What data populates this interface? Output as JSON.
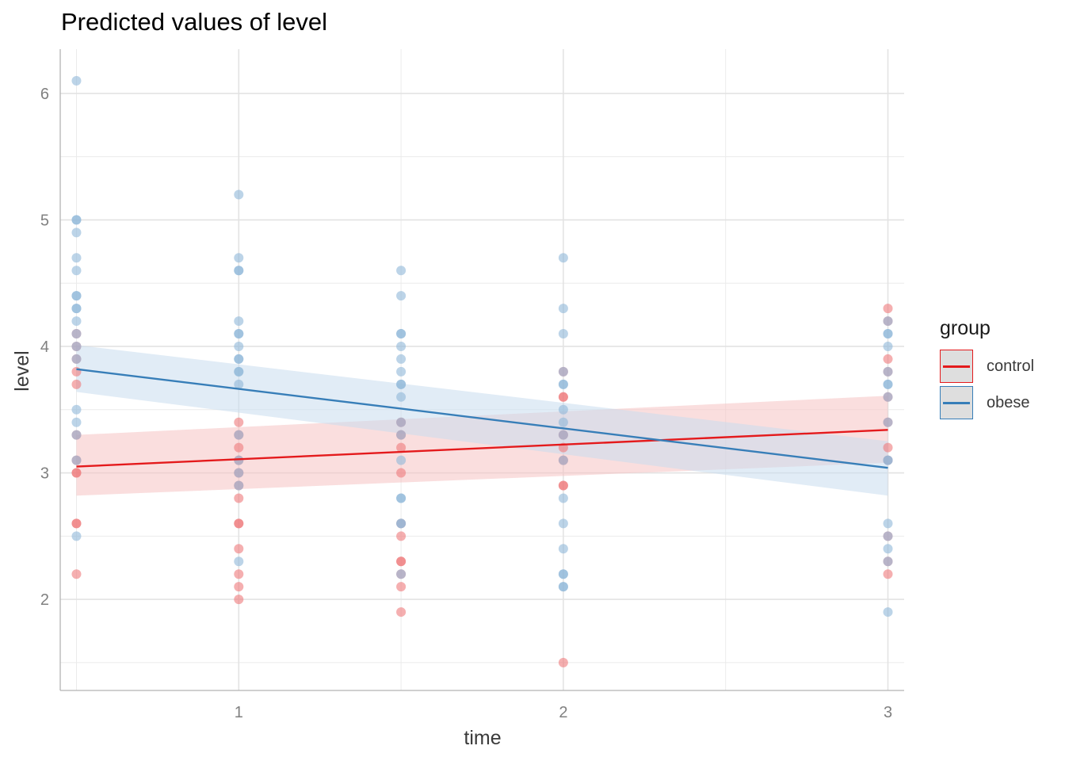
{
  "chart_data": {
    "type": "scatter",
    "title": "Predicted values of level",
    "xlabel": "time",
    "ylabel": "level",
    "xlim": [
      0.45,
      3.05
    ],
    "ylim": [
      1.28,
      6.35
    ],
    "x_ticks": [
      1,
      2,
      3
    ],
    "y_ticks": [
      2,
      3,
      4,
      5,
      6
    ],
    "grid": true,
    "legend": {
      "title": "group",
      "position": "right",
      "entries": [
        "control",
        "obese"
      ]
    },
    "series": [
      {
        "name": "control",
        "color": "#E41A1C",
        "point_color": "#EF7A7C",
        "band_color": "#F6C2C3",
        "line": {
          "x": [
            0.5,
            3.0
          ],
          "y": [
            3.05,
            3.34
          ]
        },
        "band": {
          "x": [
            0.5,
            3.0
          ],
          "lower": [
            2.82,
            3.08
          ],
          "upper": [
            3.3,
            3.61
          ]
        },
        "points": [
          {
            "x": 0.5,
            "y": [
              2.2,
              2.6,
              2.6,
              3.0,
              3.0,
              3.1,
              3.3,
              3.7,
              3.8,
              3.9,
              4.0,
              4.1
            ]
          },
          {
            "x": 1.0,
            "y": [
              2.0,
              2.1,
              2.2,
              2.4,
              2.6,
              2.6,
              2.8,
              2.9,
              3.0,
              3.1,
              3.2,
              3.3,
              3.4
            ]
          },
          {
            "x": 1.5,
            "y": [
              1.9,
              2.1,
              2.2,
              2.3,
              2.3,
              2.5,
              2.6,
              3.0,
              3.2,
              3.3,
              3.4
            ]
          },
          {
            "x": 2.0,
            "y": [
              1.5,
              2.9,
              2.9,
              3.1,
              3.2,
              3.3,
              3.6,
              3.6,
              3.8
            ]
          },
          {
            "x": 3.0,
            "y": [
              2.2,
              2.3,
              2.5,
              3.1,
              3.2,
              3.4,
              3.6,
              3.8,
              3.9,
              4.2,
              4.3
            ]
          }
        ]
      },
      {
        "name": "obese",
        "color": "#377EB8",
        "point_color": "#90B7D8",
        "band_color": "#C9DDEE",
        "line": {
          "x": [
            0.5,
            3.0
          ],
          "y": [
            3.82,
            3.04
          ]
        },
        "band": {
          "x": [
            0.5,
            3.0
          ],
          "lower": [
            3.64,
            2.82
          ],
          "upper": [
            4.01,
            3.25
          ]
        },
        "points": [
          {
            "x": 0.5,
            "y": [
              2.5,
              3.1,
              3.3,
              3.4,
              3.5,
              3.9,
              4.0,
              4.1,
              4.2,
              4.3,
              4.3,
              4.4,
              4.4,
              4.6,
              4.7,
              4.9,
              5.0,
              5.0,
              6.1
            ]
          },
          {
            "x": 1.0,
            "y": [
              2.3,
              2.9,
              3.0,
              3.1,
              3.3,
              3.7,
              3.8,
              3.8,
              3.9,
              3.9,
              4.0,
              4.1,
              4.1,
              4.2,
              4.6,
              4.6,
              4.7,
              5.2
            ]
          },
          {
            "x": 1.5,
            "y": [
              2.2,
              2.6,
              2.6,
              2.8,
              2.8,
              3.1,
              3.3,
              3.4,
              3.6,
              3.7,
              3.7,
              3.8,
              3.9,
              4.0,
              4.1,
              4.1,
              4.4,
              4.6
            ]
          },
          {
            "x": 2.0,
            "y": [
              2.1,
              2.1,
              2.2,
              2.2,
              2.4,
              2.6,
              2.8,
              3.1,
              3.3,
              3.4,
              3.5,
              3.7,
              3.7,
              3.8,
              4.1,
              4.3,
              4.7
            ]
          },
          {
            "x": 3.0,
            "y": [
              1.9,
              2.3,
              2.4,
              2.5,
              2.6,
              3.1,
              3.1,
              3.4,
              3.6,
              3.7,
              3.7,
              3.8,
              4.0,
              4.1,
              4.1,
              4.2
            ]
          }
        ]
      }
    ]
  }
}
